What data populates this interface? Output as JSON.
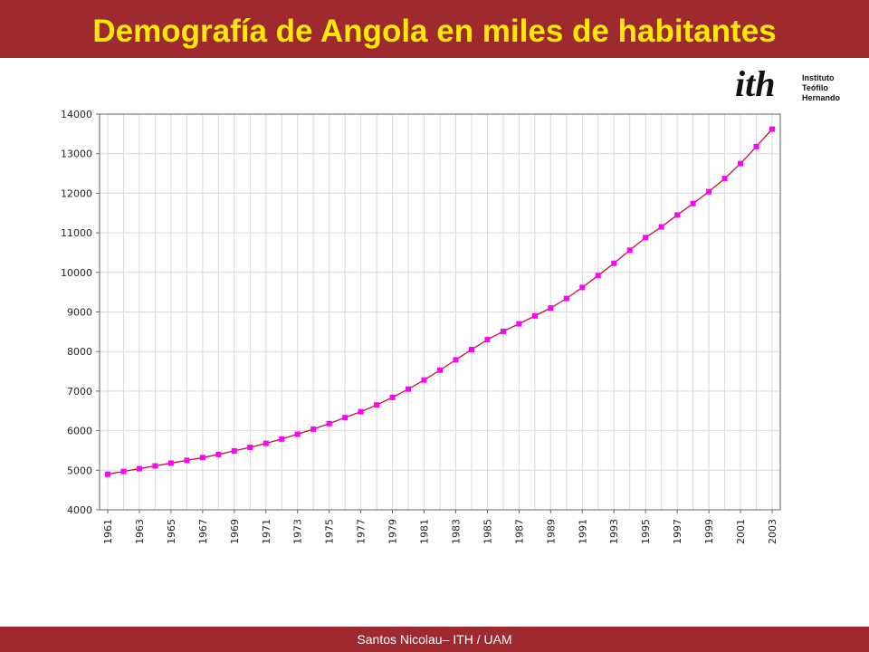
{
  "header": {
    "title": "Demografía de Angola en miles de habitantes"
  },
  "footer": {
    "text": "Santos Nicolau– ITH / UAM"
  },
  "logo": {
    "mark": "ith",
    "line1": "Instituto",
    "line2": "Teófilo Hernando"
  },
  "colors": {
    "banner": "#9e2a2f",
    "title": "#ffea00",
    "line": "#c8102e",
    "marker": "#ff00ff",
    "grid": "#d9d9d9"
  },
  "chart_data": {
    "type": "line",
    "title": "",
    "xlabel": "",
    "ylabel": "",
    "ylim": [
      4000,
      14000
    ],
    "xlim": [
      1961,
      2003
    ],
    "grid": true,
    "legend": "none",
    "yticks": [
      4000,
      5000,
      6000,
      7000,
      8000,
      9000,
      10000,
      11000,
      12000,
      13000,
      14000
    ],
    "xticks": [
      1961,
      1963,
      1965,
      1967,
      1969,
      1971,
      1973,
      1975,
      1977,
      1979,
      1981,
      1983,
      1985,
      1987,
      1989,
      1991,
      1993,
      1995,
      1997,
      1999,
      2001,
      2003
    ],
    "x": [
      1961,
      1962,
      1963,
      1964,
      1965,
      1966,
      1967,
      1968,
      1969,
      1970,
      1971,
      1972,
      1973,
      1974,
      1975,
      1976,
      1977,
      1978,
      1979,
      1980,
      1981,
      1982,
      1983,
      1984,
      1985,
      1986,
      1987,
      1988,
      1989,
      1990,
      1991,
      1992,
      1993,
      1994,
      1995,
      1996,
      1997,
      1998,
      1999,
      2000,
      2001,
      2002,
      2003
    ],
    "series": [
      {
        "values": [
          4900,
          4970,
          5040,
          5110,
          5180,
          5250,
          5320,
          5400,
          5490,
          5580,
          5680,
          5790,
          5910,
          6040,
          6180,
          6330,
          6480,
          6650,
          6840,
          7050,
          7280,
          7530,
          7790,
          8050,
          8300,
          8510,
          8700,
          8900,
          9100,
          9340,
          9620,
          9920,
          10230,
          10560,
          10880,
          11150,
          11450,
          11740,
          12040,
          12370,
          12750,
          13180,
          13620
        ]
      }
    ]
  }
}
